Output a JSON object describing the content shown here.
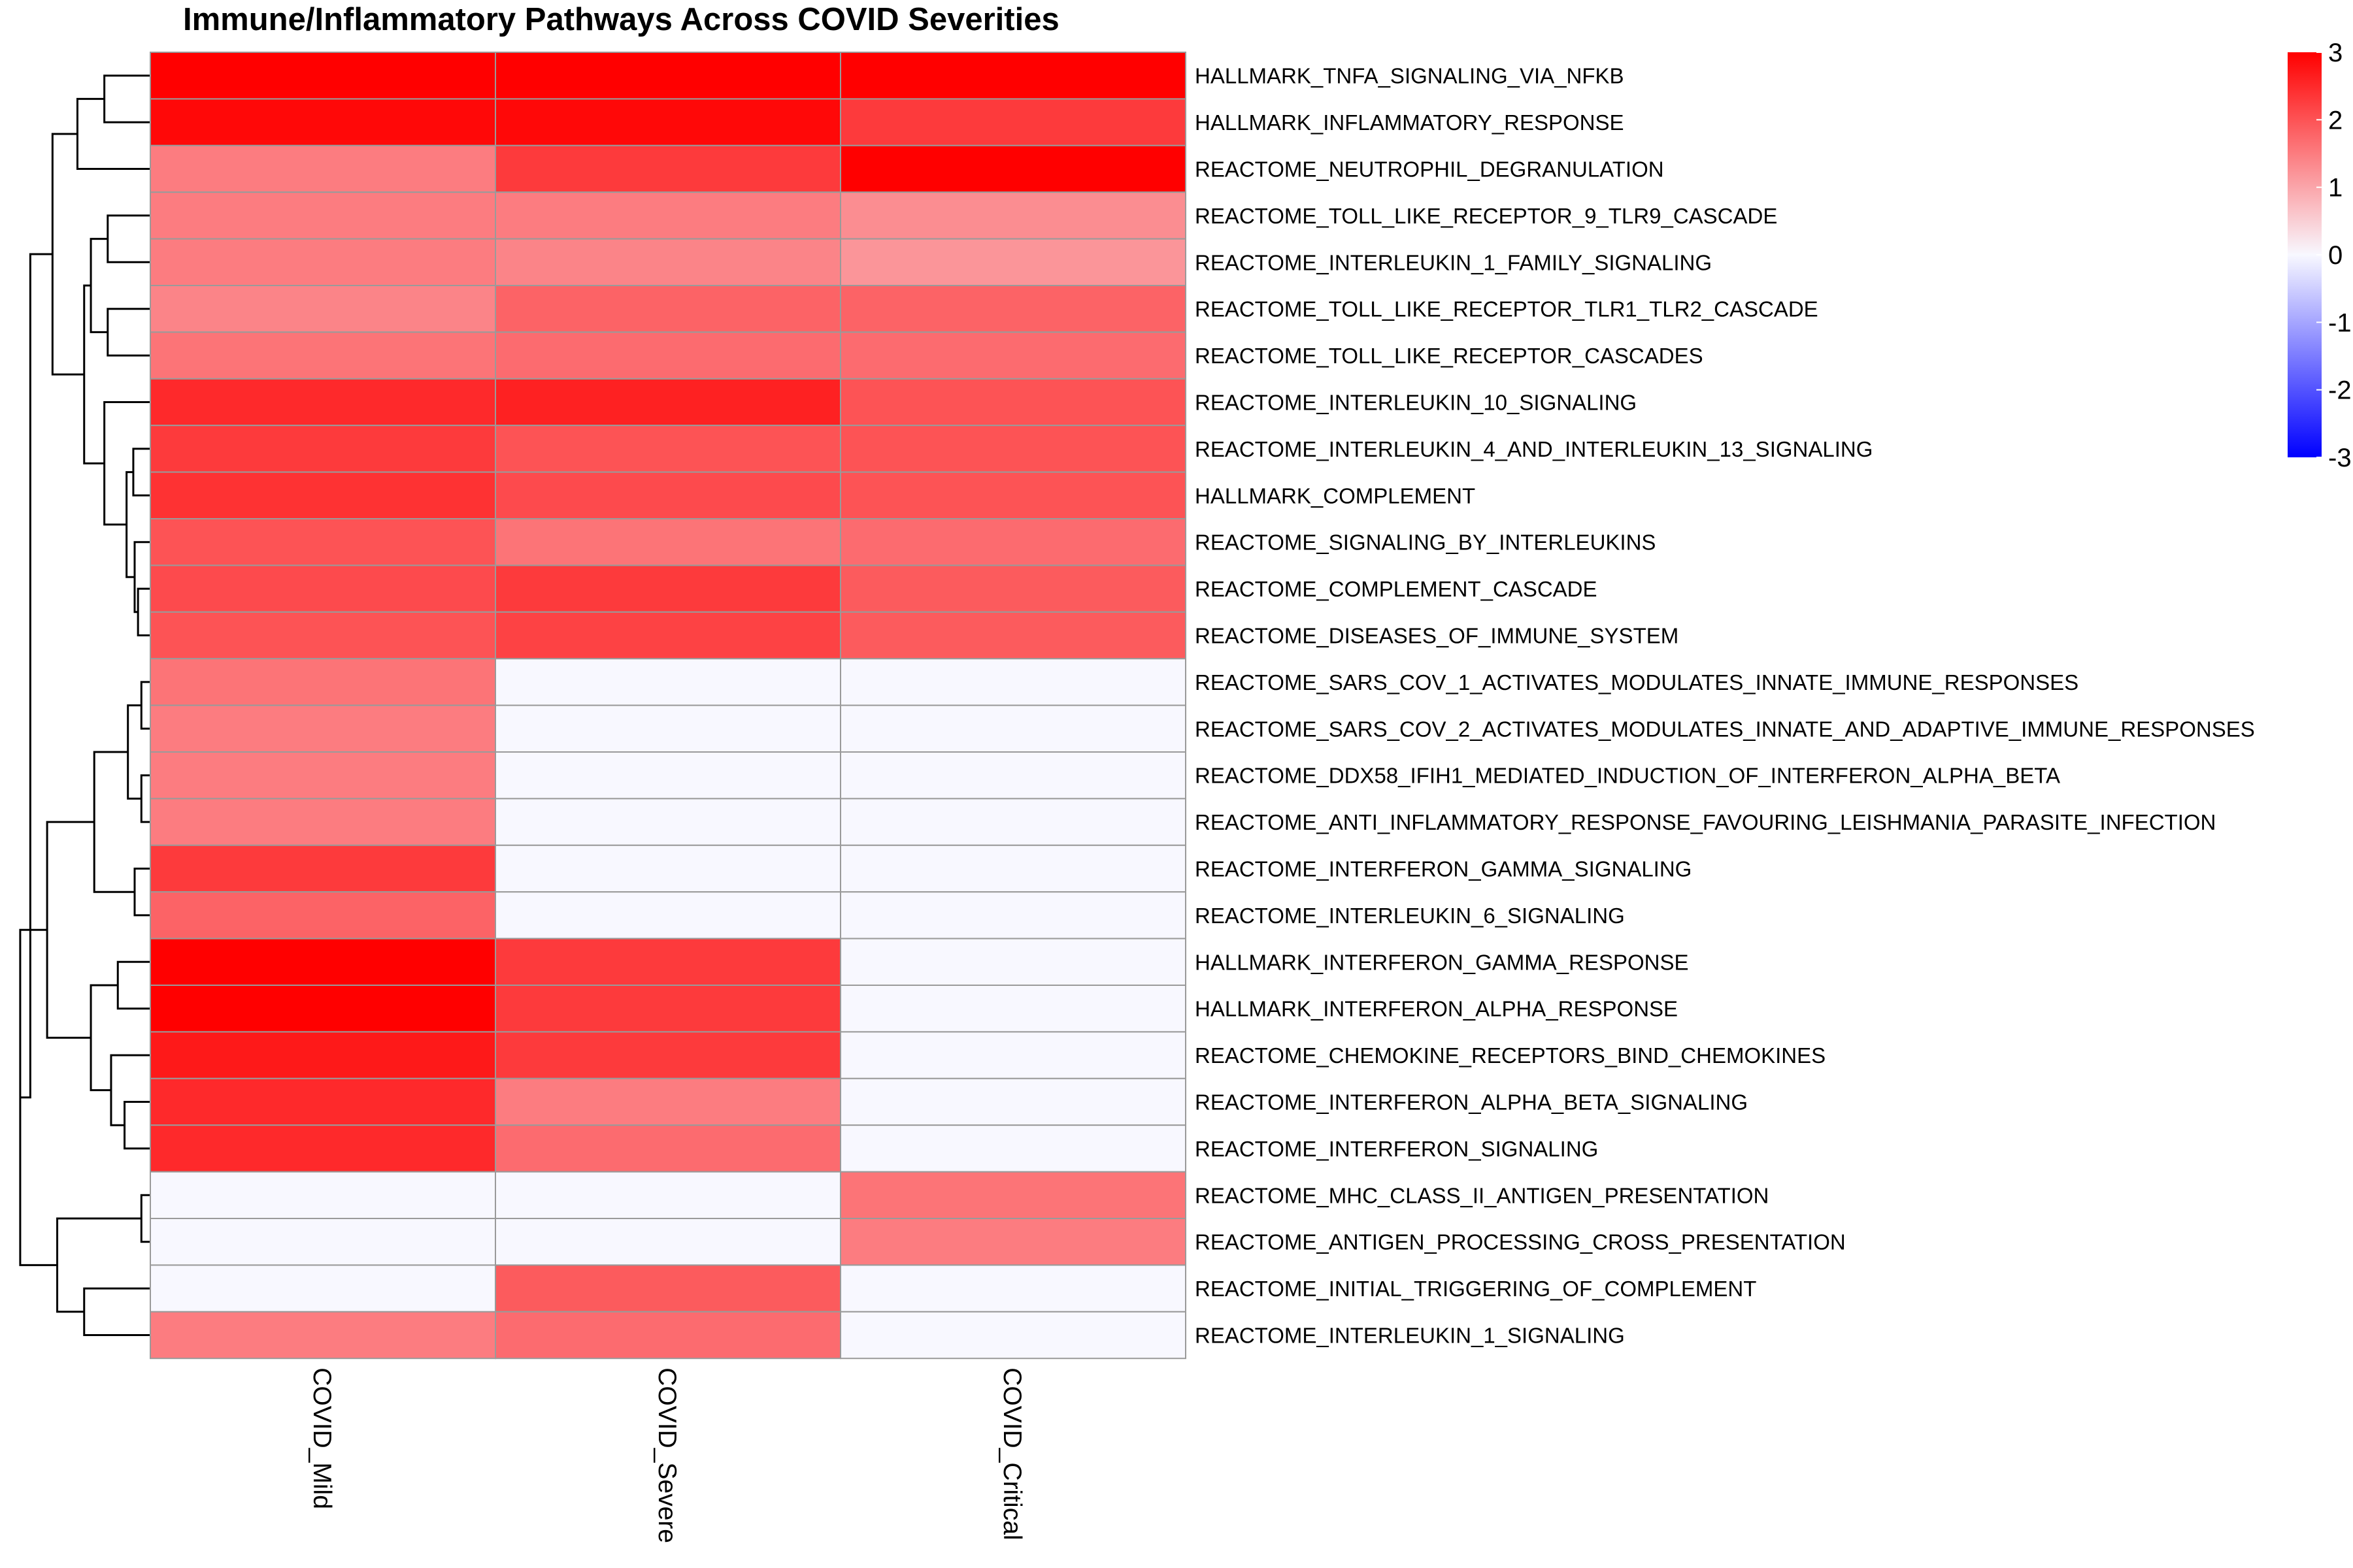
{
  "chart_data": {
    "type": "heatmap",
    "title": "Immune/Inflammatory Pathways Across COVID Severities",
    "columns": [
      "COVID_Mild",
      "COVID_Severe",
      "COVID_Critical"
    ],
    "rows": [
      "HALLMARK_TNFA_SIGNALING_VIA_NFKB",
      "HALLMARK_INFLAMMATORY_RESPONSE",
      "REACTOME_NEUTROPHIL_DEGRANULATION",
      "REACTOME_TOLL_LIKE_RECEPTOR_9_TLR9_CASCADE",
      "REACTOME_INTERLEUKIN_1_FAMILY_SIGNALING",
      "REACTOME_TOLL_LIKE_RECEPTOR_TLR1_TLR2_CASCADE",
      "REACTOME_TOLL_LIKE_RECEPTOR_CASCADES",
      "REACTOME_INTERLEUKIN_10_SIGNALING",
      "REACTOME_INTERLEUKIN_4_AND_INTERLEUKIN_13_SIGNALING",
      "HALLMARK_COMPLEMENT",
      "REACTOME_SIGNALING_BY_INTERLEUKINS",
      "REACTOME_COMPLEMENT_CASCADE",
      "REACTOME_DISEASES_OF_IMMUNE_SYSTEM",
      "REACTOME_SARS_COV_1_ACTIVATES_MODULATES_INNATE_IMMUNE_RESPONSES",
      "REACTOME_SARS_COV_2_ACTIVATES_MODULATES_INNATE_AND_ADAPTIVE_IMMUNE_RESPONSES",
      "REACTOME_DDX58_IFIH1_MEDIATED_INDUCTION_OF_INTERFERON_ALPHA_BETA",
      "REACTOME_ANTI_INFLAMMATORY_RESPONSE_FAVOURING_LEISHMANIA_PARASITE_INFECTION",
      "REACTOME_INTERFERON_GAMMA_SIGNALING",
      "REACTOME_INTERLEUKIN_6_SIGNALING",
      "HALLMARK_INTERFERON_GAMMA_RESPONSE",
      "HALLMARK_INTERFERON_ALPHA_RESPONSE",
      "REACTOME_CHEMOKINE_RECEPTORS_BIND_CHEMOKINES",
      "REACTOME_INTERFERON_ALPHA_BETA_SIGNALING",
      "REACTOME_INTERFERON_SIGNALING",
      "REACTOME_MHC_CLASS_II_ANTIGEN_PRESENTATION",
      "REACTOME_ANTIGEN_PROCESSING_CROSS_PRESENTATION",
      "REACTOME_INITIAL_TRIGGERING_OF_COMPLEMENT",
      "REACTOME_INTERLEUKIN_1_SIGNALING"
    ],
    "values": [
      [
        3.0,
        3.0,
        3.0
      ],
      [
        2.9,
        2.9,
        2.3
      ],
      [
        1.5,
        2.3,
        3.0
      ],
      [
        1.5,
        1.5,
        1.3
      ],
      [
        1.5,
        1.4,
        1.2
      ],
      [
        1.4,
        1.8,
        1.8
      ],
      [
        1.6,
        1.7,
        1.7
      ],
      [
        2.5,
        2.6,
        2.0
      ],
      [
        2.3,
        2.0,
        2.0
      ],
      [
        2.4,
        2.1,
        2.0
      ],
      [
        2.0,
        1.6,
        1.7
      ],
      [
        2.1,
        2.3,
        1.9
      ],
      [
        2.0,
        2.2,
        1.9
      ],
      [
        1.6,
        0.0,
        0.0
      ],
      [
        1.5,
        0.0,
        0.0
      ],
      [
        1.5,
        0.0,
        0.0
      ],
      [
        1.5,
        0.0,
        0.0
      ],
      [
        2.3,
        0.0,
        0.0
      ],
      [
        1.8,
        0.0,
        0.0
      ],
      [
        3.0,
        2.3,
        0.0
      ],
      [
        3.0,
        2.3,
        0.0
      ],
      [
        2.7,
        2.3,
        0.0
      ],
      [
        2.5,
        1.5,
        0.0
      ],
      [
        2.5,
        1.7,
        0.0
      ],
      [
        0.0,
        0.0,
        1.6
      ],
      [
        0.0,
        0.0,
        1.5
      ],
      [
        0.0,
        1.9,
        0.0
      ],
      [
        1.5,
        1.7,
        0.0
      ]
    ],
    "colorscale": {
      "min": -3,
      "max": 3,
      "low": "#0000FF",
      "mid": "#F8F8FF",
      "high": "#FF0000"
    },
    "legend": {
      "ticks": [
        "3",
        "2",
        "1",
        "0",
        "-1",
        "-2",
        "-3"
      ],
      "position": "top-right"
    },
    "row_dendrogram": true
  }
}
